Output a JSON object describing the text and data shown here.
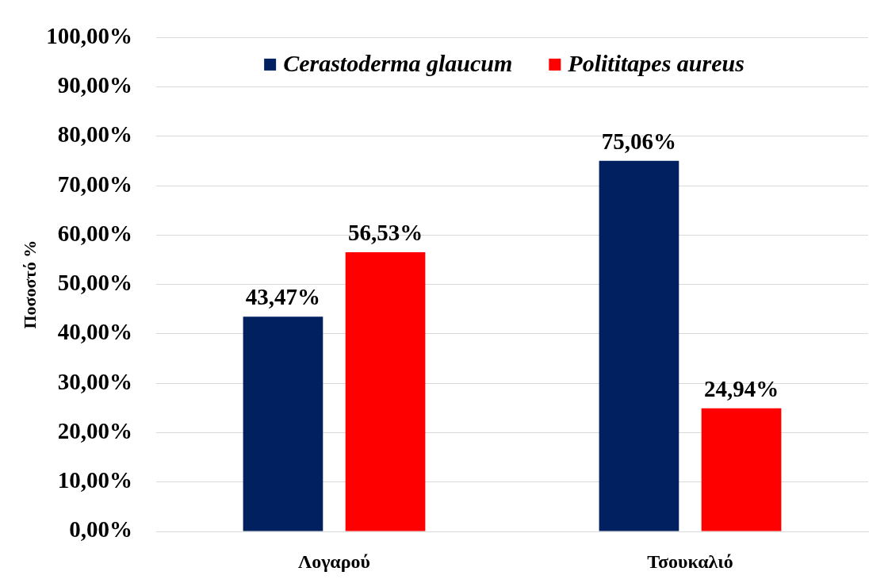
{
  "chart_data": {
    "type": "bar",
    "ylabel": "Ποσοστό %",
    "categories": [
      "Λογαρού",
      "Τσουκαλιό"
    ],
    "series": [
      {
        "name": "Cerastoderma glaucum",
        "color": "#002060",
        "values": [
          43.47,
          75.06
        ],
        "value_labels": [
          "43,47%",
          "75,06%"
        ]
      },
      {
        "name": "Polititapes aureus",
        "color": "#ff0000",
        "values": [
          56.53,
          24.94
        ],
        "value_labels": [
          "56,53%",
          "24,94%"
        ]
      }
    ],
    "ylim": [
      0,
      100
    ],
    "yticks": [
      {
        "value": 0,
        "label": "0,00%"
      },
      {
        "value": 10,
        "label": "10,00%"
      },
      {
        "value": 20,
        "label": "20,00%"
      },
      {
        "value": 30,
        "label": "30,00%"
      },
      {
        "value": 40,
        "label": "40,00%"
      },
      {
        "value": 50,
        "label": "50,00%"
      },
      {
        "value": 60,
        "label": "60,00%"
      },
      {
        "value": 70,
        "label": "70,00%"
      },
      {
        "value": 80,
        "label": "80,00%"
      },
      {
        "value": 90,
        "label": "90,00%"
      },
      {
        "value": 100,
        "label": "100,00%"
      }
    ],
    "grid": "y",
    "legend": "top"
  }
}
